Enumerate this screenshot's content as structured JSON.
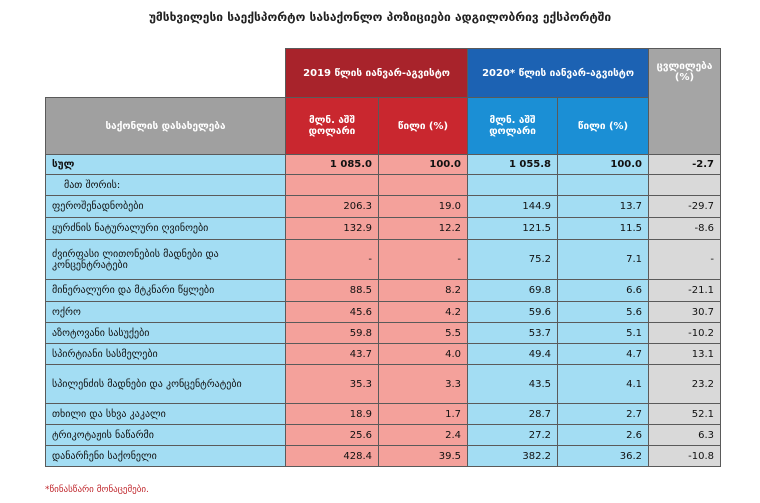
{
  "title": "უმსხვილესი საექსპორტო სასაქონლო პოზიციები ადგილობრივ ექსპორტში",
  "table": {
    "header": {
      "name": "საქონლის დასახელება",
      "period_2019": "2019 წლის იანვარ-აგვისტო",
      "period_2020": "2020* წლის იანვარ-აგვისტო",
      "change": "ცვლილება (%)",
      "value": "მლნ. აშშ დოლარი",
      "share": "წილი (%)"
    },
    "rows": [
      [
        "სულ",
        "1 085.0",
        "100.0",
        "1 055.8",
        "100.0",
        "-2.7"
      ],
      [
        "მათ შორის:"
      ],
      [
        "ფეროშენადნობები",
        "206.3",
        "19.0",
        "144.9",
        "13.7",
        "-29.7"
      ],
      [
        "ყურძნის ნატურალური ღვინოები",
        "132.9",
        "12.2",
        "121.5",
        "11.5",
        "-8.6"
      ],
      [
        "ძვირფასი ლითონების მადნები და კონცენტრატები",
        "-",
        "-",
        "75.2",
        "7.1",
        "-"
      ],
      [
        "მინერალური და მტკნარი წყლები",
        "88.5",
        "8.2",
        "69.8",
        "6.6",
        "-21.1"
      ],
      [
        "ოქრო",
        "45.6",
        "4.2",
        "59.6",
        "5.6",
        "30.7"
      ],
      [
        "აზოტოვანი სასუქები",
        "59.8",
        "5.5",
        "53.7",
        "5.1",
        "-10.2"
      ],
      [
        "სპირტიანი სასმელები",
        "43.7",
        "4.0",
        "49.4",
        "4.7",
        "13.1"
      ],
      [
        "სპილენძის მადნები და კონცენტრატები",
        "35.3",
        "3.3",
        "43.5",
        "4.1",
        "23.2"
      ],
      [
        "თხილი და სხვა კაკალი",
        "18.9",
        "1.7",
        "28.7",
        "2.7",
        "52.1"
      ],
      [
        "ტრიკოტაჟის ნაწარმი",
        "25.6",
        "2.4",
        "27.2",
        "2.6",
        "6.3"
      ],
      [
        "დანარჩენი საქონელი",
        "428.4",
        "39.5",
        "382.2",
        "36.2",
        "-10.8"
      ]
    ]
  },
  "footnote": "*წინასწარი მონაცემები."
}
